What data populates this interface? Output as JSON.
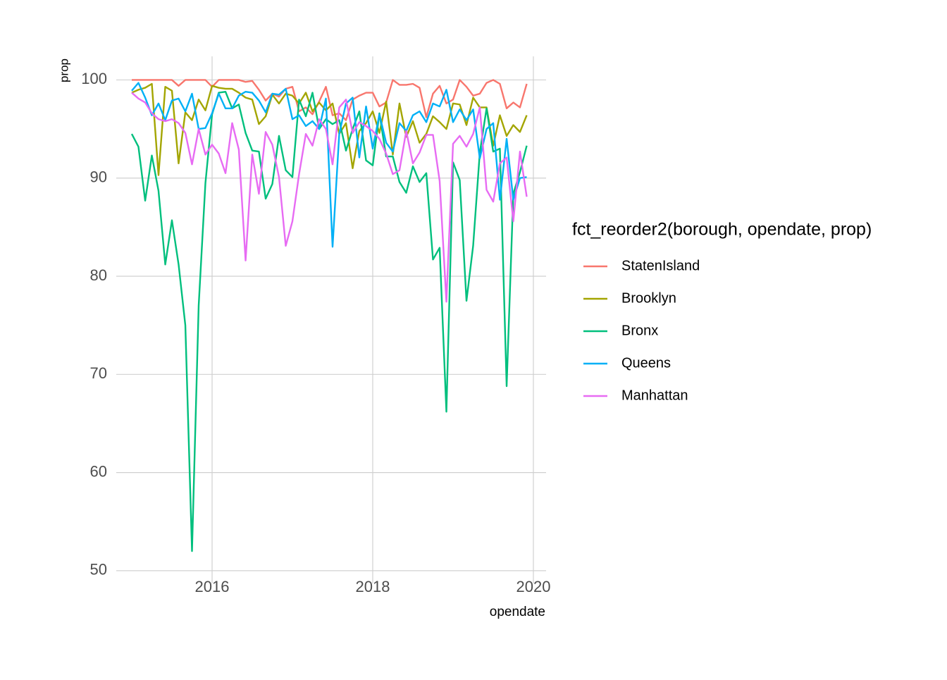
{
  "chart_data": {
    "type": "line",
    "x_label": "opendate",
    "y_label": "prop",
    "legend_title": "fct_reorder2(borough, opendate, prop)",
    "x": [
      2015,
      2015.083,
      2015.167,
      2015.25,
      2015.333,
      2015.417,
      2015.5,
      2015.583,
      2015.667,
      2015.75,
      2015.833,
      2015.917,
      2016,
      2016.083,
      2016.167,
      2016.25,
      2016.333,
      2016.417,
      2016.5,
      2016.583,
      2016.667,
      2016.75,
      2016.833,
      2016.917,
      2017,
      2017.083,
      2017.167,
      2017.25,
      2017.333,
      2017.417,
      2017.5,
      2017.583,
      2017.667,
      2017.75,
      2017.833,
      2017.917,
      2018,
      2018.083,
      2018.167,
      2018.25,
      2018.333,
      2018.417,
      2018.5,
      2018.583,
      2018.667,
      2018.75,
      2018.833,
      2018.917,
      2019,
      2019.083,
      2019.167,
      2019.25,
      2019.333,
      2019.417,
      2019.5,
      2019.583,
      2019.667,
      2019.75,
      2019.833,
      2019.917
    ],
    "series": [
      {
        "name": "StatenIsland",
        "color": "#F8766D",
        "values": [
          100,
          100,
          100,
          100,
          100,
          100,
          100,
          99.4,
          100,
          100,
          100,
          100,
          99.3,
          100,
          100,
          100,
          100,
          99.8,
          99.9,
          99.0,
          97.9,
          98.6,
          98.3,
          99.1,
          99.3,
          96.8,
          97.2,
          96.5,
          97.8,
          99.3,
          96.4,
          96.6,
          95.9,
          98.0,
          98.4,
          98.7,
          98.7,
          97.3,
          97.7,
          100,
          99.5,
          99.5,
          99.6,
          99.2,
          96.2,
          98.6,
          99.4,
          97.6,
          98.0,
          100,
          99.3,
          98.4,
          98.6,
          99.7,
          100,
          99.6,
          97.1,
          97.7,
          97.2,
          99.6
        ]
      },
      {
        "name": "Brooklyn",
        "color": "#A3A500",
        "values": [
          98.7,
          99.0,
          99.2,
          99.6,
          90.3,
          99.3,
          98.9,
          91.5,
          96.7,
          95.9,
          98.0,
          96.9,
          99.4,
          99.2,
          99.1,
          99.1,
          98.7,
          98.2,
          98.0,
          95.5,
          96.3,
          98.5,
          97.6,
          98.6,
          98.4,
          97.6,
          98.7,
          96.8,
          97.7,
          96.9,
          97.6,
          94.5,
          95.6,
          91.0,
          94.8,
          95.6,
          96.8,
          94.6,
          97.8,
          92.4,
          97.6,
          94.2,
          95.8,
          93.6,
          94.5,
          96.3,
          95.7,
          95.0,
          97.6,
          97.5,
          95.4,
          98.2,
          97.2,
          97.2,
          93.3,
          96.4,
          94.3,
          95.4,
          94.7,
          96.4
        ]
      },
      {
        "name": "Bronx",
        "color": "#00BF7D",
        "values": [
          94.5,
          93.2,
          87.7,
          92.3,
          88.7,
          81.2,
          85.7,
          81.2,
          75.0,
          52.0,
          77.0,
          89.5,
          96.5,
          98.7,
          98.8,
          97.1,
          97.5,
          94.6,
          92.8,
          92.7,
          87.9,
          89.4,
          94.3,
          90.8,
          90.1,
          98.0,
          96.3,
          98.7,
          95.0,
          96.0,
          95.5,
          95.9,
          92.8,
          95.0,
          96.8,
          91.8,
          91.3,
          96.6,
          92.2,
          92.2,
          89.6,
          88.5,
          91.2,
          89.6,
          90.5,
          81.7,
          82.9,
          66.2,
          91.6,
          89.8,
          77.5,
          83.1,
          92.6,
          97.1,
          92.7,
          93.0,
          68.8,
          88.4,
          90.6,
          93.3
        ]
      },
      {
        "name": "Queens",
        "color": "#00B0F6",
        "values": [
          98.9,
          99.7,
          98.2,
          96.4,
          97.6,
          95.9,
          97.9,
          98.1,
          96.8,
          98.6,
          95.0,
          95.1,
          96.6,
          98.6,
          97.1,
          97.1,
          98.4,
          98.8,
          98.7,
          97.9,
          96.7,
          98.6,
          98.5,
          99.1,
          96.0,
          96.4,
          95.3,
          95.8,
          95.0,
          98.1,
          83.0,
          94.5,
          97.6,
          98.2,
          92.1,
          97.3,
          93.0,
          96.5,
          93.6,
          92.7,
          95.6,
          94.8,
          96.4,
          96.8,
          95.7,
          97.6,
          97.3,
          99.0,
          95.7,
          97.0,
          95.9,
          97.0,
          92.0,
          95.0,
          95.6,
          87.8,
          94.0,
          87.8,
          90.0,
          90.1
        ]
      },
      {
        "name": "Manhattan",
        "color": "#E76BF3",
        "values": [
          98.7,
          98.1,
          97.7,
          96.6,
          96.0,
          95.8,
          96.0,
          95.6,
          94.6,
          91.4,
          95.0,
          92.4,
          93.4,
          92.5,
          90.5,
          95.6,
          92.9,
          81.6,
          92.4,
          88.4,
          94.7,
          93.4,
          90.1,
          83.1,
          85.6,
          90.4,
          94.5,
          93.3,
          96.0,
          95.0,
          91.4,
          97.2,
          98.0,
          94.6,
          95.7,
          95.3,
          94.8,
          94.0,
          92.5,
          90.4,
          90.8,
          94.8,
          91.5,
          92.6,
          94.4,
          94.4,
          89.7,
          77.4,
          93.5,
          94.3,
          93.2,
          94.5,
          97.2,
          88.8,
          87.6,
          91.5,
          92.1,
          85.6,
          92.7,
          88.1
        ]
      }
    ],
    "xlim": [
      2014.807,
      2020.158
    ],
    "xticks": [
      2016,
      2018,
      2020
    ],
    "ylim": [
      48.7,
      102.4
    ],
    "yticks": [
      50,
      60,
      70,
      80,
      90,
      100
    ],
    "grid": true
  }
}
